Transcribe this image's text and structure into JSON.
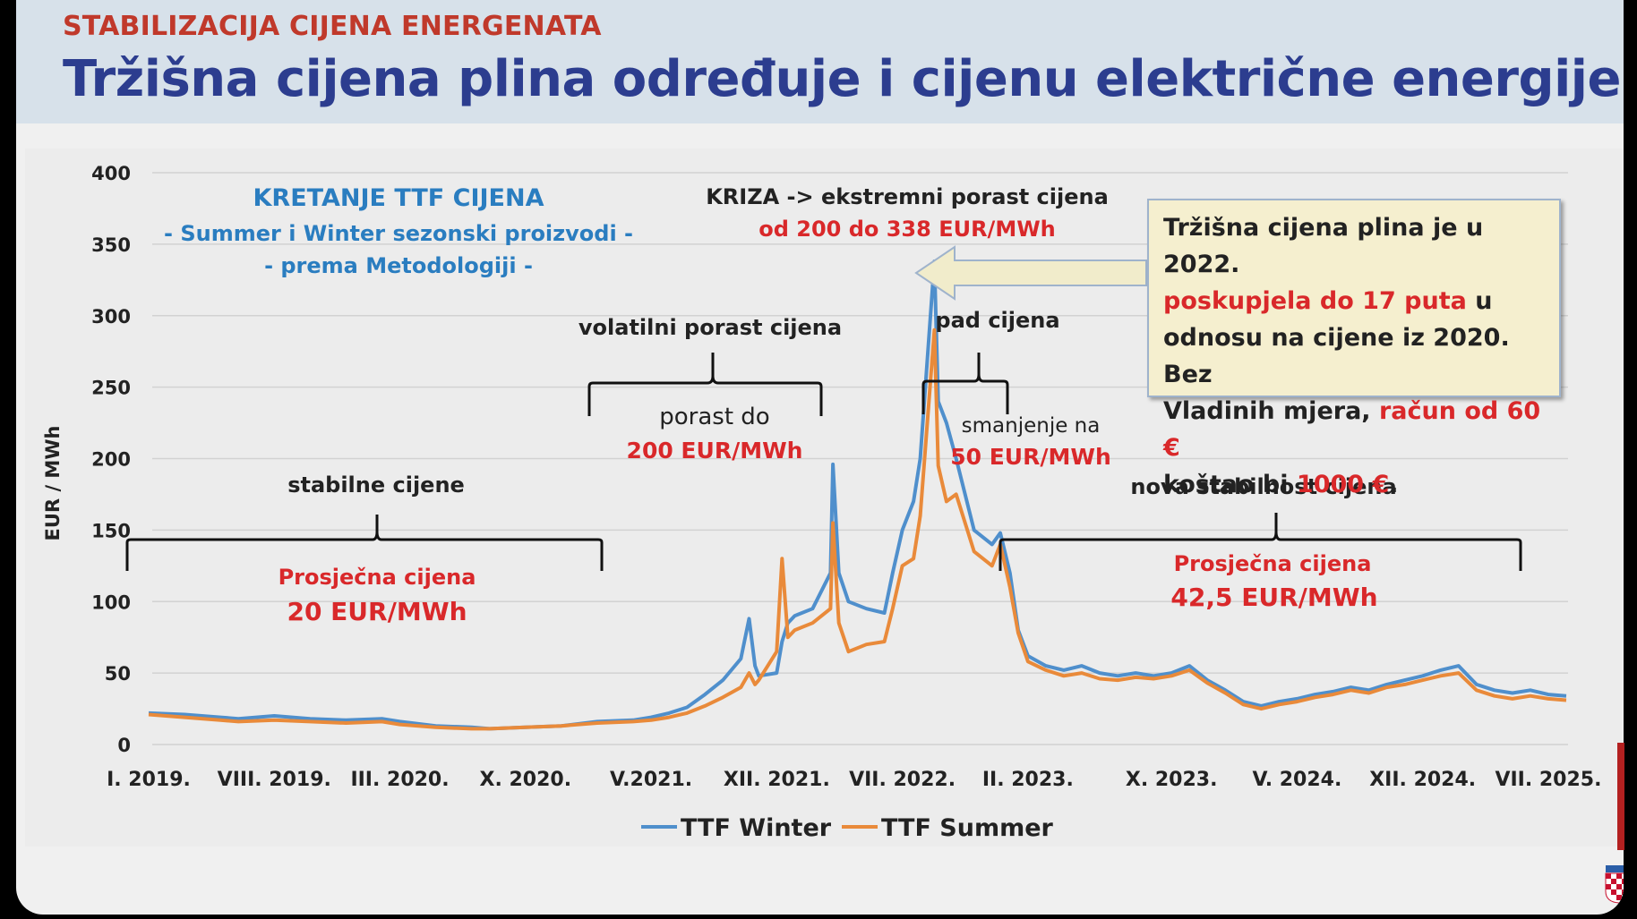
{
  "header": {
    "kicker": "STABILIZACIJA CIJENA ENERGENATA",
    "title": "Tržišna cijena plina određuje i cijenu električne energije"
  },
  "chart_data": {
    "type": "line",
    "ylabel": "EUR / MWh",
    "ylim": [
      0,
      400
    ],
    "yticks": [
      "0",
      "50",
      "100",
      "150",
      "200",
      "250",
      "300",
      "350",
      "400"
    ],
    "xlim": [
      "2019-01",
      "2025-08"
    ],
    "xticks": [
      {
        "label": "I. 2019.",
        "date": "2019-01"
      },
      {
        "label": "VIII. 2019.",
        "date": "2019-08"
      },
      {
        "label": "III. 2020.",
        "date": "2020-03"
      },
      {
        "label": "X. 2020.",
        "date": "2020-10"
      },
      {
        "label": "V.2021.",
        "date": "2021-05"
      },
      {
        "label": "XII. 2021.",
        "date": "2021-12"
      },
      {
        "label": "VII. 2022.",
        "date": "2022-07"
      },
      {
        "label": "II. 2023.",
        "date": "2023-02"
      },
      {
        "label": "X. 2023.",
        "date": "2023-10"
      },
      {
        "label": "V. 2024.",
        "date": "2024-05"
      },
      {
        "label": "XII. 2024.",
        "date": "2024-12"
      },
      {
        "label": "VII. 2025.",
        "date": "2025-07"
      }
    ],
    "grid": true,
    "legend": "bottom-center",
    "series": [
      {
        "name": "TTF Winter",
        "color": "#4f8fcc",
        "points": [
          [
            "2019-01",
            22
          ],
          [
            "2019-03",
            21
          ],
          [
            "2019-05",
            19
          ],
          [
            "2019-06",
            18
          ],
          [
            "2019-08",
            20
          ],
          [
            "2019-10",
            18
          ],
          [
            "2019-12",
            17
          ],
          [
            "2020-02",
            18
          ],
          [
            "2020-03",
            16
          ],
          [
            "2020-05",
            13
          ],
          [
            "2020-07",
            12
          ],
          [
            "2020-08",
            11
          ],
          [
            "2020-10",
            12
          ],
          [
            "2020-12",
            13
          ],
          [
            "2021-02",
            16
          ],
          [
            "2021-04",
            17
          ],
          [
            "2021-05",
            19
          ],
          [
            "2021-06",
            22
          ],
          [
            "2021-07",
            26
          ],
          [
            "2021-08",
            35
          ],
          [
            "2021-09",
            45
          ],
          [
            "2021-10",
            60
          ],
          [
            "2021-10-15",
            88
          ],
          [
            "2021-10-25",
            55
          ],
          [
            "2021-11",
            48
          ],
          [
            "2021-12",
            50
          ],
          [
            "2021-12-10",
            72
          ],
          [
            "2021-12-20",
            85
          ],
          [
            "2022-01",
            90
          ],
          [
            "2022-02",
            95
          ],
          [
            "2022-03",
            120
          ],
          [
            "2022-03-05",
            196
          ],
          [
            "2022-03-15",
            120
          ],
          [
            "2022-04",
            100
          ],
          [
            "2022-05",
            95
          ],
          [
            "2022-06",
            92
          ],
          [
            "2022-06-15",
            120
          ],
          [
            "2022-07",
            150
          ],
          [
            "2022-07-20",
            170
          ],
          [
            "2022-08",
            200
          ],
          [
            "2022-08-25",
            338
          ],
          [
            "2022-09",
            240
          ],
          [
            "2022-09-15",
            225
          ],
          [
            "2022-10",
            200
          ],
          [
            "2022-11",
            150
          ],
          [
            "2022-12",
            140
          ],
          [
            "2022-12-15",
            148
          ],
          [
            "2023-01",
            120
          ],
          [
            "2023-01-15",
            80
          ],
          [
            "2023-02",
            62
          ],
          [
            "2023-03",
            55
          ],
          [
            "2023-04",
            52
          ],
          [
            "2023-05",
            55
          ],
          [
            "2023-06",
            50
          ],
          [
            "2023-07",
            48
          ],
          [
            "2023-08",
            50
          ],
          [
            "2023-09",
            48
          ],
          [
            "2023-10",
            50
          ],
          [
            "2023-11",
            55
          ],
          [
            "2023-12",
            45
          ],
          [
            "2024-01",
            38
          ],
          [
            "2024-02",
            30
          ],
          [
            "2024-03",
            27
          ],
          [
            "2024-04",
            30
          ],
          [
            "2024-05",
            32
          ],
          [
            "2024-06",
            35
          ],
          [
            "2024-07",
            37
          ],
          [
            "2024-08",
            40
          ],
          [
            "2024-09",
            38
          ],
          [
            "2024-10",
            42
          ],
          [
            "2024-11",
            45
          ],
          [
            "2024-12",
            48
          ],
          [
            "2025-01",
            52
          ],
          [
            "2025-02",
            55
          ],
          [
            "2025-03",
            42
          ],
          [
            "2025-04",
            38
          ],
          [
            "2025-05",
            36
          ],
          [
            "2025-06",
            38
          ],
          [
            "2025-07",
            35
          ],
          [
            "2025-08",
            34
          ]
        ]
      },
      {
        "name": "TTF Summer",
        "color": "#e98a3a",
        "points": [
          [
            "2019-01",
            21
          ],
          [
            "2019-03",
            19
          ],
          [
            "2019-05",
            17
          ],
          [
            "2019-06",
            16
          ],
          [
            "2019-08",
            17
          ],
          [
            "2019-10",
            16
          ],
          [
            "2019-12",
            15
          ],
          [
            "2020-02",
            16
          ],
          [
            "2020-03",
            14
          ],
          [
            "2020-05",
            12
          ],
          [
            "2020-07",
            11
          ],
          [
            "2020-08",
            11
          ],
          [
            "2020-10",
            12
          ],
          [
            "2020-12",
            13
          ],
          [
            "2021-02",
            15
          ],
          [
            "2021-04",
            16
          ],
          [
            "2021-05",
            17
          ],
          [
            "2021-06",
            19
          ],
          [
            "2021-07",
            22
          ],
          [
            "2021-08",
            27
          ],
          [
            "2021-09",
            33
          ],
          [
            "2021-10",
            40
          ],
          [
            "2021-10-15",
            50
          ],
          [
            "2021-10-25",
            42
          ],
          [
            "2021-11",
            45
          ],
          [
            "2021-12",
            65
          ],
          [
            "2021-12-10",
            130
          ],
          [
            "2021-12-20",
            75
          ],
          [
            "2022-01",
            80
          ],
          [
            "2022-02",
            85
          ],
          [
            "2022-03",
            95
          ],
          [
            "2022-03-05",
            155
          ],
          [
            "2022-03-15",
            85
          ],
          [
            "2022-04",
            65
          ],
          [
            "2022-05",
            70
          ],
          [
            "2022-06",
            72
          ],
          [
            "2022-06-15",
            95
          ],
          [
            "2022-07",
            125
          ],
          [
            "2022-07-20",
            130
          ],
          [
            "2022-08",
            160
          ],
          [
            "2022-08-25",
            290
          ],
          [
            "2022-09",
            195
          ],
          [
            "2022-09-15",
            170
          ],
          [
            "2022-10",
            175
          ],
          [
            "2022-11",
            135
          ],
          [
            "2022-12",
            125
          ],
          [
            "2022-12-15",
            140
          ],
          [
            "2023-01",
            110
          ],
          [
            "2023-01-15",
            78
          ],
          [
            "2023-02",
            58
          ],
          [
            "2023-03",
            52
          ],
          [
            "2023-04",
            48
          ],
          [
            "2023-05",
            50
          ],
          [
            "2023-06",
            46
          ],
          [
            "2023-07",
            45
          ],
          [
            "2023-08",
            47
          ],
          [
            "2023-09",
            46
          ],
          [
            "2023-10",
            48
          ],
          [
            "2023-11",
            52
          ],
          [
            "2023-12",
            43
          ],
          [
            "2024-01",
            36
          ],
          [
            "2024-02",
            28
          ],
          [
            "2024-03",
            25
          ],
          [
            "2024-04",
            28
          ],
          [
            "2024-05",
            30
          ],
          [
            "2024-06",
            33
          ],
          [
            "2024-07",
            35
          ],
          [
            "2024-08",
            38
          ],
          [
            "2024-09",
            36
          ],
          [
            "2024-10",
            40
          ],
          [
            "2024-11",
            42
          ],
          [
            "2024-12",
            45
          ],
          [
            "2025-01",
            48
          ],
          [
            "2025-02",
            50
          ],
          [
            "2025-03",
            38
          ],
          [
            "2025-04",
            34
          ],
          [
            "2025-05",
            32
          ],
          [
            "2025-06",
            34
          ],
          [
            "2025-07",
            32
          ],
          [
            "2025-08",
            31
          ]
        ]
      }
    ],
    "annotations": {
      "chart_title": "KRETANJE TTF CIJENA",
      "chart_subtitle_1": "- Summer i Winter sezonski proizvodi -",
      "chart_subtitle_2": "- prema Metodologiji -",
      "crisis_label": "KRIZA -> ekstremni porast cijena",
      "crisis_value": "od 200 do 338 EUR/MWh",
      "volatile_label": "volatilni porast cijena",
      "volatile_sub": "porast do",
      "volatile_value": "200 EUR/MWh",
      "drop_label": "pad cijena",
      "drop_sub": "smanjenje na",
      "drop_value": "50 EUR/MWh",
      "stable_label": "stabilne cijene",
      "stable_sub": "Prosječna cijena",
      "stable_value": "20 EUR/MWh",
      "new_stable_label": "nova stabilnost cijena",
      "new_stable_sub": "Prosječna cijena",
      "new_stable_value": "42,5 EUR/MWh"
    }
  },
  "callout": {
    "line1": "Tržišna cijena plina je u 2022.",
    "line2_red": "poskupjela do 17 puta",
    "line2_rest": " u",
    "line3": "odnosu na cijene iz 2020. Bez",
    "line4_start": "Vladinih mjera, ",
    "line4_red": "račun od 60 €",
    "line5_start": "koštao bi ",
    "line5_red": "1000 €",
    "line5_end": "."
  },
  "colors": {
    "header_bg": "#d7e1ea",
    "title": "#2c3d8f",
    "kicker": "#c0392b",
    "annotation_blue": "#2a7dc0",
    "annotation_red": "#d9282a",
    "arrow_fill": "#f1eccb"
  }
}
